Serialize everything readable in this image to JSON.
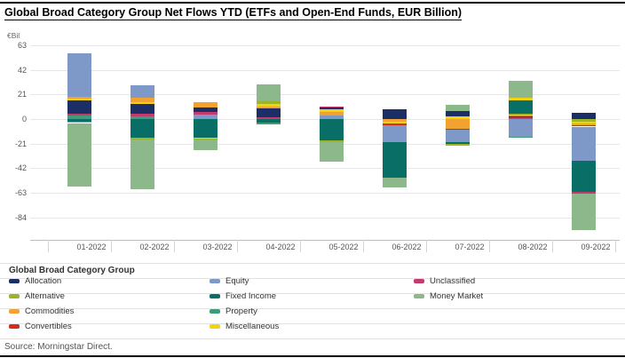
{
  "title": "Global Broad Category Group Net Flows YTD (ETFs and Open-End Funds, EUR Billion)",
  "y_axis_unit": "€Bil",
  "source": "Source: Morningstar Direct.",
  "legend": {
    "header": "Global Broad Category Group",
    "columns": [
      [
        "Allocation",
        "Alternative",
        "Commodities",
        "Convertibles"
      ],
      [
        "Equity",
        "Fixed Income",
        "Property",
        "Miscellaneous"
      ],
      [
        "Unclassified",
        "Money Market"
      ]
    ]
  },
  "colors": {
    "Allocation": "#1b2f66",
    "Alternative": "#9cb525",
    "Commodities": "#f2a230",
    "Convertibles": "#d22d1e",
    "Equity": "#7e99c7",
    "Fixed Income": "#096f66",
    "Property": "#3f9b78",
    "Miscellaneous": "#f2d30f",
    "Unclassified": "#c23a6e",
    "Money Market": "#8cb88c"
  },
  "chart_data": {
    "type": "bar",
    "stacked": true,
    "title": "Global Broad Category Group Net Flows YTD (ETFs and Open-End Funds, EUR Billion)",
    "xlabel": "",
    "ylabel": "€Bil",
    "ylim": [
      -103,
      68
    ],
    "grid": true,
    "legend_position": "bottom",
    "y_ticks": [
      63,
      42,
      21,
      0,
      -21,
      -42,
      -63,
      -84
    ],
    "categories": [
      "01-2022",
      "02-2022",
      "03-2022",
      "04-2022",
      "05-2022",
      "06-2022",
      "07-2022",
      "08-2022",
      "09-2022"
    ],
    "bars": [
      {
        "month": "01-2022",
        "segments": [
          [
            "Equity",
            37.5
          ],
          [
            "Commodities",
            1.3
          ],
          [
            "Miscellaneous",
            1.3
          ],
          [
            "Allocation",
            11.8
          ],
          [
            "Unclassified",
            1.4
          ],
          [
            "Property",
            3.0
          ],
          [
            "Fixed Income",
            -2.3
          ],
          [
            "Alternative",
            -1.1
          ],
          [
            "Money Market",
            -54.6
          ]
        ]
      },
      {
        "month": "02-2022",
        "segments": [
          [
            "Equity",
            10.6
          ],
          [
            "Commodities",
            3.8
          ],
          [
            "Miscellaneous",
            1.8
          ],
          [
            "Allocation",
            8.4
          ],
          [
            "Unclassified",
            1.8
          ],
          [
            "Property",
            2.5
          ],
          [
            "Fixed Income",
            -16.0
          ],
          [
            "Alternative",
            -1.2
          ],
          [
            "Money Market",
            -42.6
          ]
        ]
      },
      {
        "month": "03-2022",
        "segments": [
          [
            "Commodities",
            4.6
          ],
          [
            "Allocation",
            4.0
          ],
          [
            "Unclassified",
            2.0
          ],
          [
            "Equity",
            3.8
          ],
          [
            "Fixed Income",
            -15.7
          ],
          [
            "Miscellaneous",
            -0.9
          ],
          [
            "Alternative",
            -0.8
          ],
          [
            "Money Market",
            -8.9
          ]
        ]
      },
      {
        "month": "04-2022",
        "segments": [
          [
            "Money Market",
            14.6
          ],
          [
            "Alternative",
            2.1
          ],
          [
            "Miscellaneous",
            2.5
          ],
          [
            "Commodities",
            1.8
          ],
          [
            "Allocation",
            7.1
          ],
          [
            "Unclassified",
            1.7
          ],
          [
            "Fixed Income",
            -2.8
          ],
          [
            "Property",
            -1.8
          ]
        ]
      },
      {
        "month": "05-2022",
        "segments": [
          [
            "Unclassified",
            1.0
          ],
          [
            "Allocation",
            1.5
          ],
          [
            "Miscellaneous",
            2.5
          ],
          [
            "Commodities",
            2.6
          ],
          [
            "Equity",
            3.3
          ],
          [
            "Fixed Income",
            -18.0
          ],
          [
            "Alternative",
            -1.5
          ],
          [
            "Money Market",
            -16.7
          ]
        ]
      },
      {
        "month": "06-2022",
        "segments": [
          [
            "Allocation",
            8.1
          ],
          [
            "Commodities",
            -2.0
          ],
          [
            "Miscellaneous",
            -1.7
          ],
          [
            "Convertibles",
            -1.8
          ],
          [
            "Equity",
            -14.1
          ],
          [
            "Fixed Income",
            -30.2
          ],
          [
            "Money Market",
            -8.4
          ]
        ]
      },
      {
        "month": "07-2022",
        "segments": [
          [
            "Money Market",
            5.5
          ],
          [
            "Allocation",
            4.5
          ],
          [
            "Miscellaneous",
            2.4
          ],
          [
            "Commodities",
            -8.0
          ],
          [
            "Convertibles",
            -1.1
          ],
          [
            "Equity",
            -10.7
          ],
          [
            "Fixed Income",
            -1.5
          ],
          [
            "Alternative",
            -1.2
          ]
        ]
      },
      {
        "month": "08-2022",
        "segments": [
          [
            "Money Market",
            14.4
          ],
          [
            "Miscellaneous",
            2.6
          ],
          [
            "Fixed Income",
            10.9
          ],
          [
            "Alternative",
            1.2
          ],
          [
            "Commodities",
            1.3
          ],
          [
            "Allocation",
            1.0
          ],
          [
            "Unclassified",
            1.3
          ],
          [
            "Equity",
            -15.3
          ],
          [
            "Property",
            -0.6
          ]
        ]
      },
      {
        "month": "09-2022",
        "segments": [
          [
            "Allocation",
            5.5
          ],
          [
            "Alternative",
            -2.0
          ],
          [
            "Miscellaneous",
            -1.5
          ],
          [
            "Commodities",
            -2.0
          ],
          [
            "Convertibles",
            -1.0
          ],
          [
            "Equity",
            -29.4
          ],
          [
            "Fixed Income",
            -26.6
          ],
          [
            "Unclassified",
            -1.3
          ],
          [
            "Money Market",
            -31.0
          ]
        ]
      }
    ]
  }
}
